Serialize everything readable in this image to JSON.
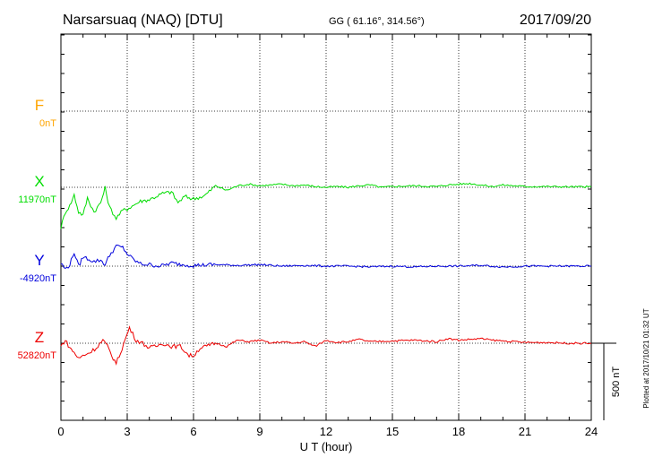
{
  "header": {
    "station": "Narsarsuaq (NAQ)  [DTU]",
    "coords": "GG ( 61.16°, 314.56°)",
    "date": "2017/09/20"
  },
  "footer": {
    "scale_label": "500 nT",
    "plotted": "Plotted at 2017/10/21 01:32 UT"
  },
  "chart_data": {
    "type": "line",
    "title": "Narsarsuaq (NAQ)  [DTU]",
    "xlabel": "U T (hour)",
    "xlim": [
      0,
      24
    ],
    "x_ticks": [
      0,
      3,
      6,
      9,
      12,
      15,
      18,
      21,
      24
    ],
    "grid": true,
    "scale_bar_nT": 500,
    "series": [
      {
        "name": "F",
        "baseline_label": "0nT",
        "color": "#ffa500",
        "x": [],
        "y": []
      },
      {
        "name": "X",
        "baseline_label": "11970nT",
        "color": "#00dd00",
        "x": [
          0,
          0.2,
          0.4,
          0.6,
          0.8,
          1.0,
          1.2,
          1.5,
          1.8,
          2.0,
          2.2,
          2.5,
          2.8,
          3.0,
          3.3,
          3.6,
          4.0,
          4.3,
          4.6,
          5.0,
          5.3,
          5.6,
          6.0,
          6.5,
          7.0,
          7.5,
          8.0,
          8.5,
          9.0,
          9.5,
          10.0,
          10.5,
          11.0,
          11.5,
          12.0,
          12.5,
          13.0,
          13.5,
          14.0,
          14.5,
          15.0,
          16.0,
          17.0,
          17.5,
          18.0,
          18.5,
          19.0,
          19.5,
          20.0,
          21.0,
          22.0,
          23.0,
          24.0
        ],
        "y": [
          -260,
          -160,
          -120,
          -50,
          -160,
          -180,
          -70,
          -160,
          -100,
          -5,
          -130,
          -200,
          -150,
          -140,
          -115,
          -90,
          -80,
          -60,
          -40,
          -30,
          -100,
          -60,
          -75,
          -55,
          10,
          -20,
          10,
          20,
          10,
          15,
          20,
          10,
          15,
          5,
          0,
          5,
          0,
          10,
          15,
          0,
          5,
          10,
          5,
          15,
          20,
          25,
          15,
          5,
          15,
          5,
          5,
          3,
          3
        ]
      },
      {
        "name": "Y",
        "baseline_label": "-4920nT",
        "color": "#0000dd",
        "x": [
          0,
          0.2,
          0.4,
          0.6,
          0.8,
          1.0,
          1.2,
          1.5,
          1.8,
          2.0,
          2.2,
          2.5,
          2.8,
          3.0,
          3.3,
          3.6,
          4.0,
          4.5,
          5.0,
          5.5,
          6.0,
          7.0,
          8.0,
          9.0,
          10.0,
          11.0,
          12.0,
          13.0,
          14.0,
          15.0,
          16.0,
          17.0,
          18.0,
          19.0,
          20.0,
          21.0,
          22.0,
          23.0,
          24.0
        ],
        "y": [
          20,
          -20,
          10,
          90,
          0,
          60,
          50,
          30,
          40,
          10,
          70,
          130,
          120,
          80,
          40,
          15,
          10,
          0,
          20,
          10,
          5,
          10,
          5,
          10,
          0,
          5,
          0,
          0,
          -5,
          0,
          -5,
          0,
          0,
          5,
          -5,
          0,
          0,
          0,
          0
        ]
      },
      {
        "name": "Z",
        "baseline_label": "52820nT",
        "color": "#ee0000",
        "x": [
          0,
          0.2,
          0.4,
          0.6,
          0.8,
          1.0,
          1.3,
          1.6,
          1.9,
          2.1,
          2.3,
          2.5,
          2.7,
          2.9,
          3.1,
          3.4,
          3.7,
          4.0,
          4.3,
          4.6,
          5.0,
          5.4,
          5.8,
          6.0,
          6.3,
          6.6,
          7.0,
          7.5,
          8.0,
          8.5,
          9.0,
          9.5,
          10.0,
          10.5,
          11.0,
          11.5,
          12.0,
          12.5,
          13.0,
          13.5,
          14.0,
          15.0,
          16.0,
          17.0,
          17.5,
          18.0,
          18.5,
          19.0,
          19.5,
          20.0,
          21.0,
          22.0,
          23.0,
          24.0
        ],
        "y": [
          -20,
          20,
          -30,
          -60,
          -100,
          -80,
          -60,
          -30,
          20,
          -20,
          -80,
          -130,
          -60,
          20,
          100,
          20,
          0,
          -30,
          -20,
          0,
          -20,
          -20,
          -80,
          -80,
          -30,
          -20,
          0,
          -20,
          20,
          10,
          20,
          0,
          10,
          0,
          10,
          -20,
          20,
          5,
          10,
          25,
          10,
          15,
          20,
          10,
          30,
          20,
          25,
          30,
          20,
          15,
          5,
          5,
          0,
          0
        ]
      }
    ]
  }
}
